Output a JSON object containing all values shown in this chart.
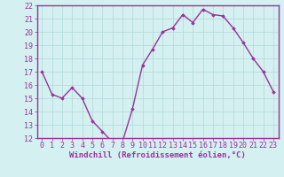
{
  "x": [
    0,
    1,
    2,
    3,
    4,
    5,
    6,
    7,
    8,
    9,
    10,
    11,
    12,
    13,
    14,
    15,
    16,
    17,
    18,
    19,
    20,
    21,
    22,
    23
  ],
  "y": [
    17.0,
    15.3,
    15.0,
    15.8,
    15.0,
    13.3,
    12.5,
    11.7,
    11.7,
    14.2,
    17.5,
    18.7,
    20.0,
    20.3,
    21.3,
    20.7,
    21.7,
    21.3,
    21.2,
    20.3,
    19.2,
    18.0,
    17.0,
    15.5
  ],
  "line_color": "#993399",
  "marker": "D",
  "marker_size": 1.8,
  "bg_color": "#d4f0f0",
  "grid_color": "#b0d8d8",
  "spine_color": "#993399",
  "tick_label_color": "#993399",
  "xlabel": "Windchill (Refroidissement éolien,°C)",
  "ylim": [
    12,
    22
  ],
  "xlim": [
    -0.5,
    23.5
  ],
  "yticks": [
    12,
    13,
    14,
    15,
    16,
    17,
    18,
    19,
    20,
    21,
    22
  ],
  "xticks": [
    0,
    1,
    2,
    3,
    4,
    5,
    6,
    7,
    8,
    9,
    10,
    11,
    12,
    13,
    14,
    15,
    16,
    17,
    18,
    19,
    20,
    21,
    22,
    23
  ],
  "xlabel_fontsize": 6.5,
  "tick_fontsize": 6.0,
  "linewidth": 1.0
}
